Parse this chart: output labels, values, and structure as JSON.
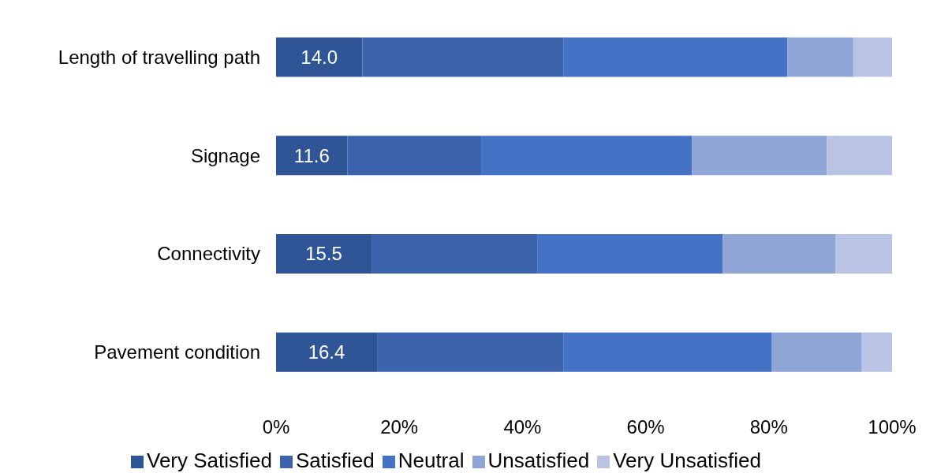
{
  "chart_data": {
    "type": "bar",
    "orientation": "horizontal",
    "stacked": true,
    "categories": [
      "Length of travelling path",
      "Signage",
      "Connectivity",
      "Pavement condition"
    ],
    "series": [
      {
        "name": "Very Satisfied",
        "color": "#2f5597",
        "values": [
          14.0,
          11.6,
          15.5,
          16.4
        ],
        "value_labels": [
          "14.0",
          "11.6",
          "15.5",
          "16.4"
        ]
      },
      {
        "name": "Satisfied",
        "color": "#3b64ad",
        "values": [
          32.7,
          21.7,
          26.9,
          30.3
        ]
      },
      {
        "name": "Neutral",
        "color": "#4472c4",
        "values": [
          36.3,
          34.2,
          30.1,
          33.8
        ]
      },
      {
        "name": "Unsatisfied",
        "color": "#8fa5d6",
        "values": [
          10.7,
          21.9,
          18.3,
          14.6
        ]
      },
      {
        "name": "Very Unsatisfied",
        "color": "#b9c3e3",
        "values": [
          6.3,
          10.6,
          9.2,
          4.9
        ]
      }
    ],
    "xlim": [
      0,
      100
    ],
    "xticks": [
      {
        "value": 0,
        "label": "0%"
      },
      {
        "value": 20,
        "label": "20%"
      },
      {
        "value": 40,
        "label": "40%"
      },
      {
        "value": 60,
        "label": "60%"
      },
      {
        "value": 80,
        "label": "80%"
      },
      {
        "value": 100,
        "label": "100%"
      }
    ],
    "grid": false,
    "legend": "bottom"
  }
}
